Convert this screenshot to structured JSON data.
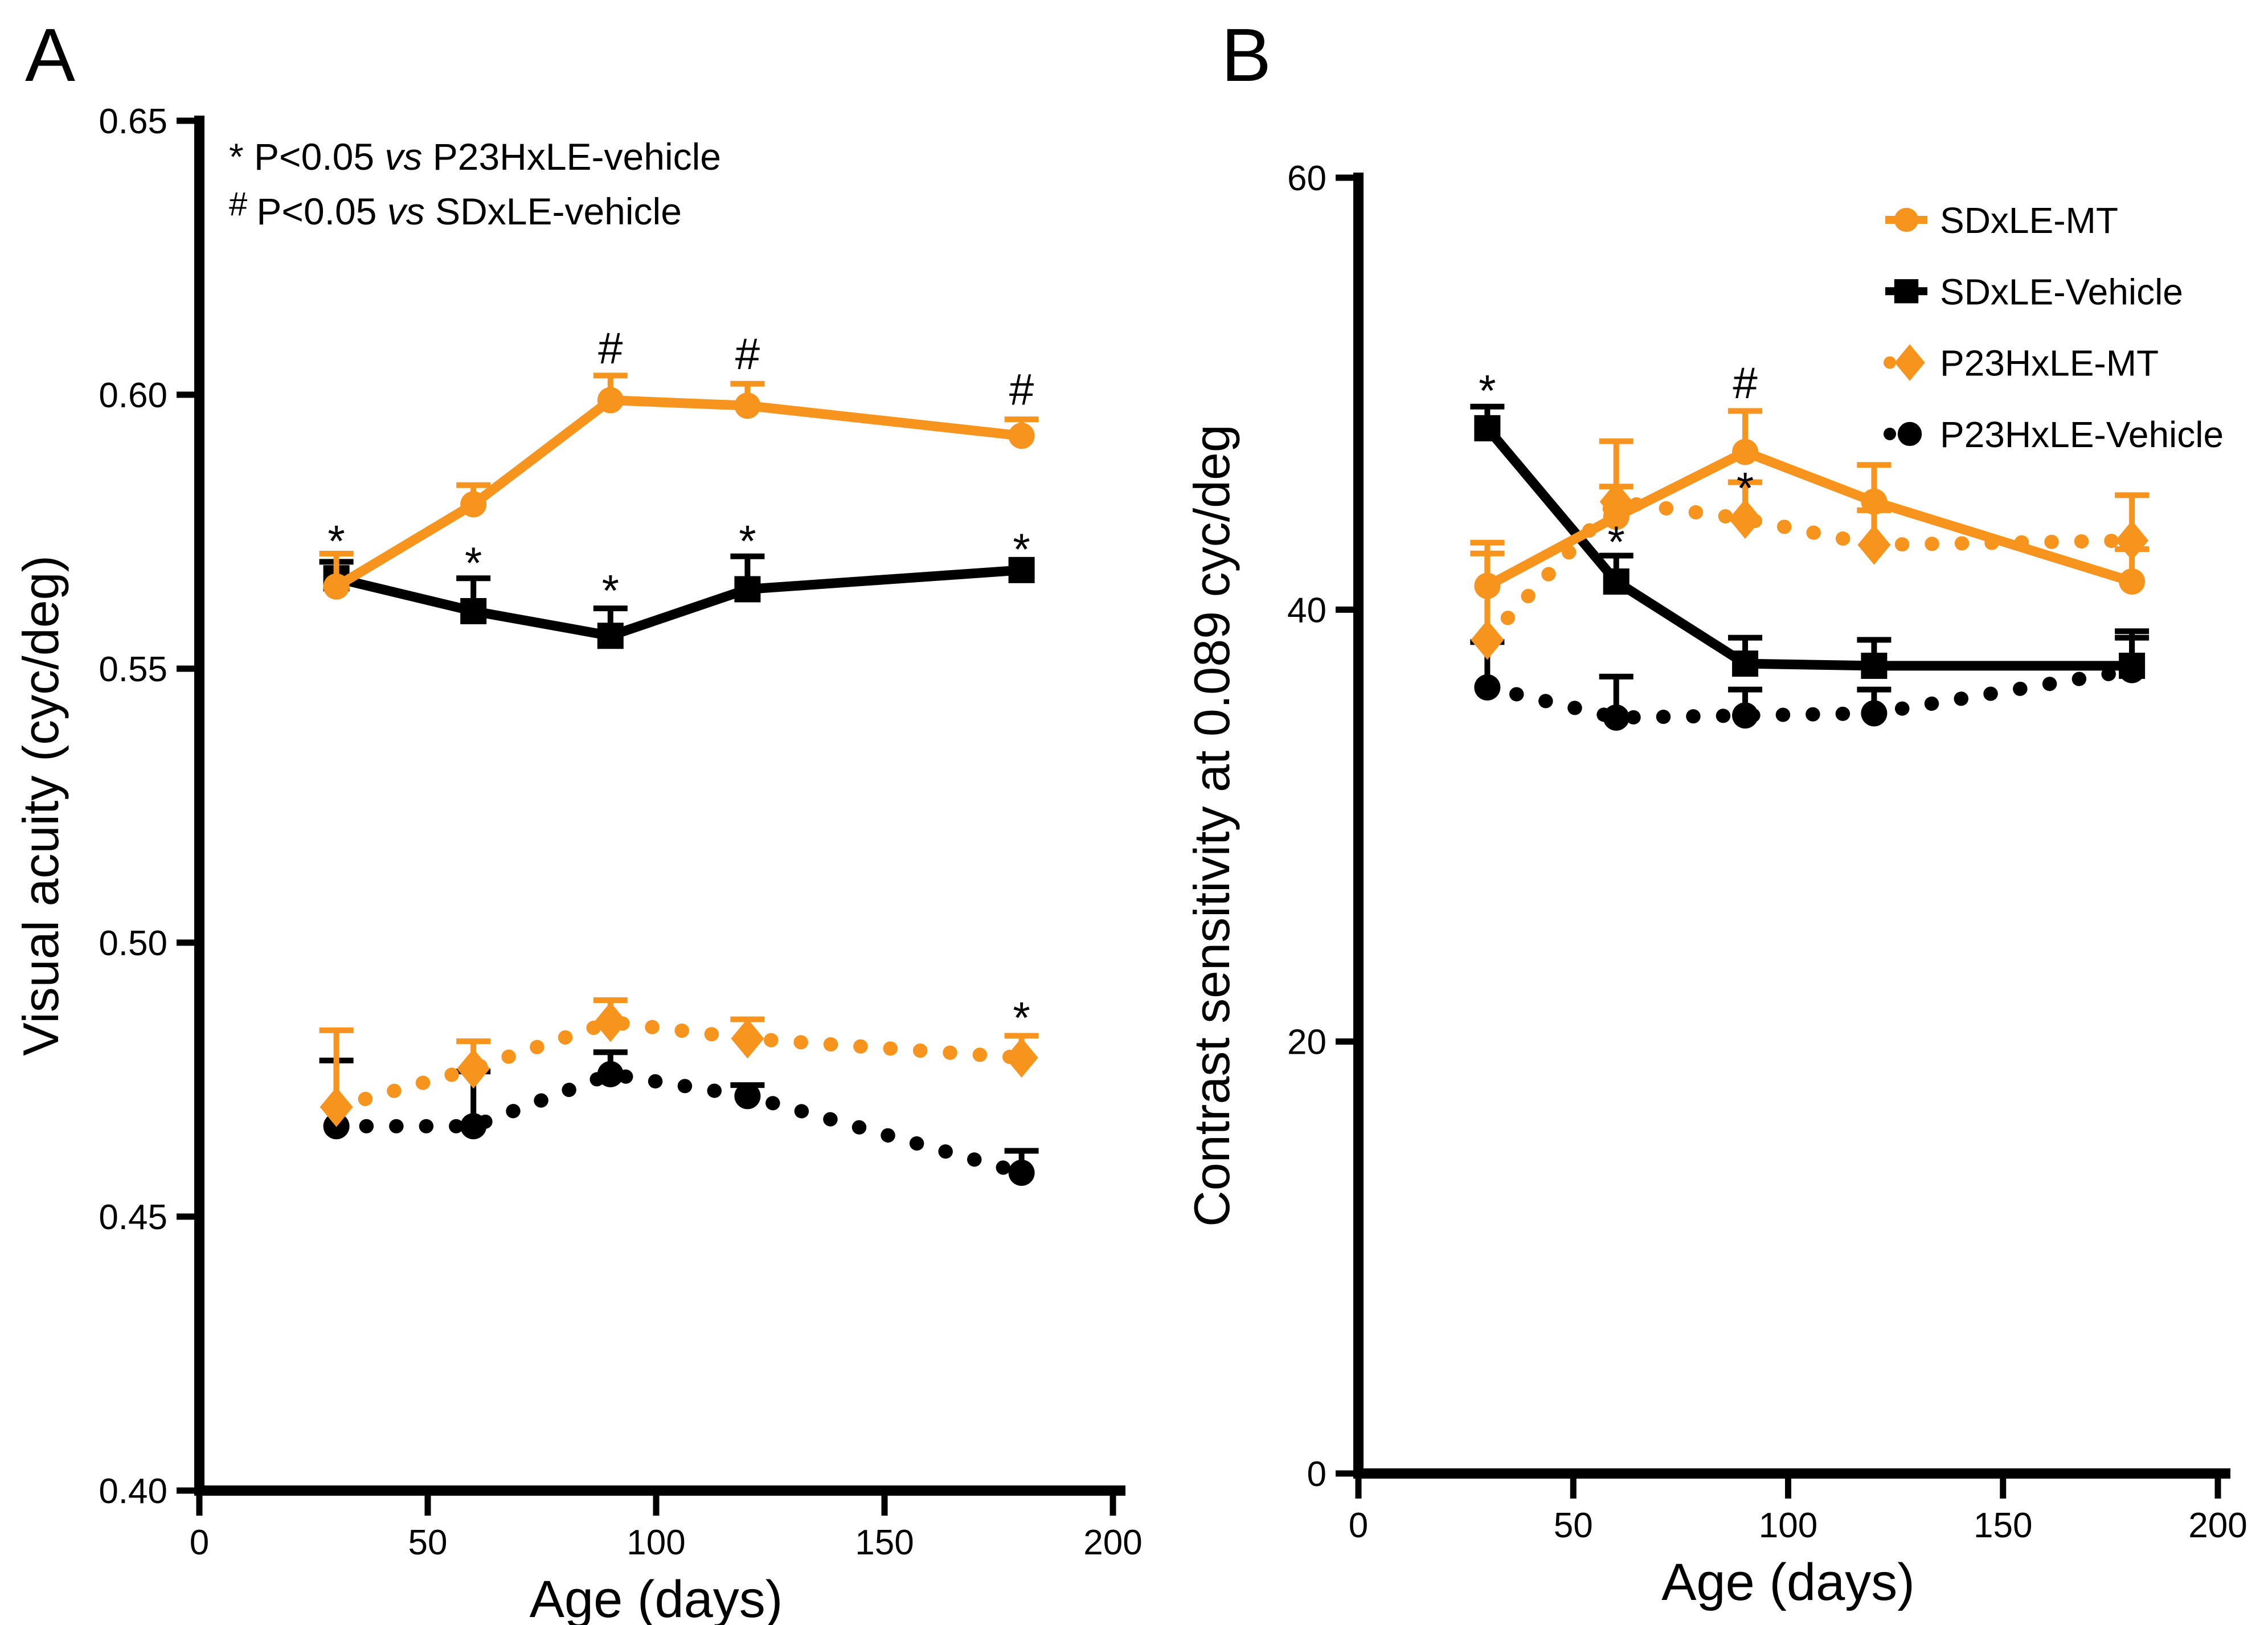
{
  "figure": {
    "background": "#ffffff",
    "accent_orange": "#F7941E",
    "accent_black": "#000000"
  },
  "chart_data": [
    {
      "type": "line",
      "panel_label": "A",
      "xlabel": "Age (days)",
      "ylabel": "Visual acuity (cyc/deg)",
      "xlim": [
        0,
        200
      ],
      "ylim": [
        0.4,
        0.65
      ],
      "grid": false,
      "xticks": {
        "values": [
          0,
          50,
          100,
          150,
          200
        ],
        "labels": [
          "0",
          "50",
          "100",
          "150",
          "200"
        ]
      },
      "yticks": {
        "values": [
          0.4,
          0.45,
          0.5,
          0.55,
          0.6,
          0.65
        ],
        "labels": [
          "0.40",
          "0.45",
          "0.50",
          "0.55",
          "0.60",
          "0.65"
        ]
      },
      "x": [
        30,
        60,
        90,
        120,
        180
      ],
      "series": [
        {
          "name": "SDxLE-MT",
          "color": "#F7941E",
          "line_style": "solid",
          "marker": "circle",
          "values": [
            0.565,
            0.58,
            0.599,
            0.598,
            0.5925
          ],
          "err_up": [
            0.006,
            0.0035,
            0.0045,
            0.004,
            0.003
          ]
        },
        {
          "name": "SDxLE-Vehicle",
          "color": "#000000",
          "line_style": "solid",
          "marker": "square",
          "values": [
            0.5665,
            0.5605,
            0.556,
            0.5645,
            0.568
          ],
          "err_up": [
            0.003,
            0.006,
            0.005,
            0.006,
            0
          ]
        },
        {
          "name": "P23HxLE-MT",
          "color": "#F7941E",
          "line_style": "dotted",
          "marker": "diamond",
          "values": [
            0.47,
            0.477,
            0.4855,
            0.4825,
            0.479
          ],
          "err_up": [
            0.014,
            0.005,
            0.004,
            0.0035,
            0.004
          ]
        },
        {
          "name": "P23HxLE-Vehicle",
          "color": "#000000",
          "line_style": "dotted",
          "marker": "circle",
          "values": [
            0.4665,
            0.4665,
            0.476,
            0.472,
            0.458
          ],
          "err_up": [
            0.012,
            0.01,
            0.004,
            0.002,
            0.004
          ]
        }
      ],
      "sig_annotations": [
        {
          "symbol": "*",
          "day": 30,
          "value": 0.5755
        },
        {
          "symbol": "*",
          "day": 60,
          "value": 0.5715
        },
        {
          "symbol": "*",
          "day": 90,
          "value": 0.5665
        },
        {
          "symbol": "*",
          "day": 120,
          "value": 0.5755
        },
        {
          "symbol": "*",
          "day": 180,
          "value": 0.574
        },
        {
          "symbol": "#",
          "day": 90,
          "value": 0.6085
        },
        {
          "symbol": "#",
          "day": 120,
          "value": 0.6075
        },
        {
          "symbol": "#",
          "day": 180,
          "value": 0.601
        },
        {
          "symbol": "*",
          "day": 180,
          "value": 0.4885
        }
      ],
      "notes": [
        {
          "marker": "*",
          "pre": "P<0.05 ",
          "italic": "vs",
          "post": " P23HxLE-vehicle"
        },
        {
          "marker": "#",
          "pre": "P<0.05 ",
          "italic": "vs",
          "post": " SDxLE-vehicle"
        }
      ],
      "legend": false
    },
    {
      "type": "line",
      "panel_label": "B",
      "xlabel": "Age (days)",
      "ylabel": "Contrast sensitivity at 0.089 cyc/deg",
      "xlim": [
        0,
        200
      ],
      "ylim": [
        0,
        60
      ],
      "grid": false,
      "xticks": {
        "values": [
          0,
          50,
          100,
          150,
          200
        ],
        "labels": [
          "0",
          "50",
          "100",
          "150",
          "200"
        ]
      },
      "yticks": {
        "values": [
          0,
          20,
          40,
          60
        ],
        "labels": [
          "0",
          "20",
          "40",
          "60"
        ]
      },
      "x": [
        30,
        60,
        90,
        120,
        180
      ],
      "series": [
        {
          "name": "SDxLE-MT",
          "color": "#F7941E",
          "line_style": "solid",
          "marker": "circle",
          "values": [
            41.1,
            44.3,
            47.3,
            45.0,
            41.3
          ],
          "err_up": [
            2.0,
            1.4,
            1.9,
            1.7,
            1.5
          ]
        },
        {
          "name": "SDxLE-Vehicle",
          "color": "#000000",
          "line_style": "solid",
          "marker": "square",
          "values": [
            48.4,
            41.3,
            37.5,
            37.4,
            37.4
          ],
          "err_up": [
            1.0,
            1.2,
            1.2,
            1.2,
            1.6
          ]
        },
        {
          "name": "P23HxLE-MT",
          "color": "#F7941E",
          "line_style": "dotted",
          "marker": "diamond",
          "values": [
            38.6,
            45.0,
            44.2,
            43.0,
            43.2
          ],
          "err_up": [
            4.0,
            2.8,
            1.7,
            1.6,
            2.1
          ]
        },
        {
          "name": "P23HxLE-Vehicle",
          "color": "#000000",
          "line_style": "dotted",
          "marker": "circle",
          "values": [
            36.4,
            35.0,
            35.1,
            35.2,
            37.2
          ],
          "err_up": [
            2.1,
            1.9,
            1.2,
            1.1,
            1.5
          ]
        }
      ],
      "sig_annotations": [
        {
          "symbol": "*",
          "day": 30,
          "value": 50.7
        },
        {
          "symbol": "*",
          "day": 60,
          "value": 43.7
        },
        {
          "symbol": "#",
          "day": 90,
          "value": 50.5
        },
        {
          "symbol": "*",
          "day": 90,
          "value": 46.2
        }
      ],
      "notes": [],
      "legend": true,
      "legend_entries": [
        "SDxLE-MT",
        "SDxLE-Vehicle",
        "P23HxLE-MT",
        "P23HxLE-Vehicle"
      ]
    }
  ]
}
